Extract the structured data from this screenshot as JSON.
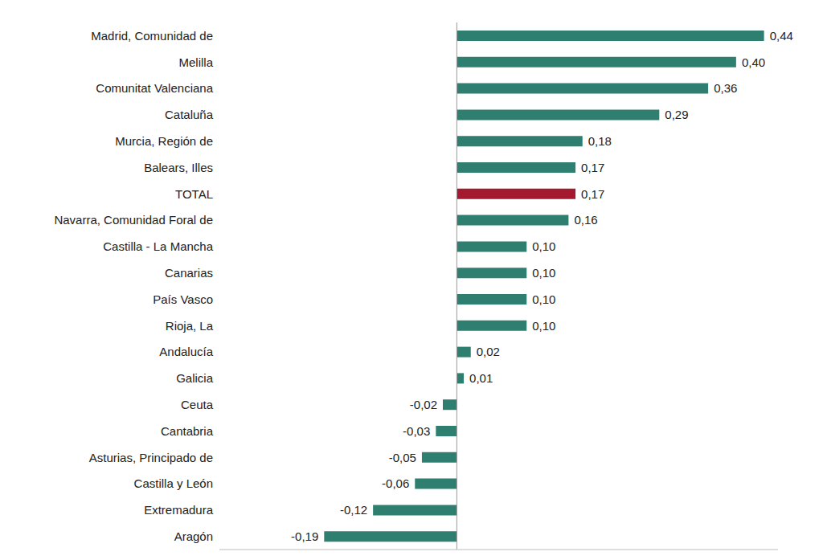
{
  "chart_data": {
    "type": "bar",
    "orientation": "horizontal",
    "categories": [
      "Madrid, Comunidad de",
      "Melilla",
      "Comunitat Valenciana",
      "Cataluña",
      "Murcia, Región de",
      "Balears, Illes",
      "TOTAL",
      "Navarra, Comunidad Foral de",
      "Castilla - La Mancha",
      "Canarias",
      "País Vasco",
      "Rioja, La",
      "Andalucía",
      "Galicia",
      "Ceuta",
      "Cantabria",
      "Asturias, Principado de",
      "Castilla y León",
      "Extremadura",
      "Aragón"
    ],
    "values": [
      0.44,
      0.4,
      0.36,
      0.29,
      0.18,
      0.17,
      0.17,
      0.16,
      0.1,
      0.1,
      0.1,
      0.1,
      0.02,
      0.01,
      -0.02,
      -0.03,
      -0.05,
      -0.06,
      -0.12,
      -0.19
    ],
    "value_labels": [
      "0,44",
      "0,40",
      "0,36",
      "0,29",
      "0,18",
      "0,17",
      "0,17",
      "0,16",
      "0,10",
      "0,10",
      "0,10",
      "0,10",
      "0,02",
      "0,01",
      "-0,02",
      "-0,03",
      "-0,05",
      "-0,06",
      "-0,12",
      "-0,19"
    ],
    "colors": [
      "#2f7f71",
      "#2f7f71",
      "#2f7f71",
      "#2f7f71",
      "#2f7f71",
      "#2f7f71",
      "#a3192f",
      "#2f7f71",
      "#2f7f71",
      "#2f7f71",
      "#2f7f71",
      "#2f7f71",
      "#2f7f71",
      "#2f7f71",
      "#2f7f71",
      "#2f7f71",
      "#2f7f71",
      "#2f7f71",
      "#2f7f71",
      "#2f7f71"
    ],
    "xlim": [
      -0.34,
      0.46
    ],
    "data_labels": true,
    "tick_labels": "y",
    "grid": false
  }
}
